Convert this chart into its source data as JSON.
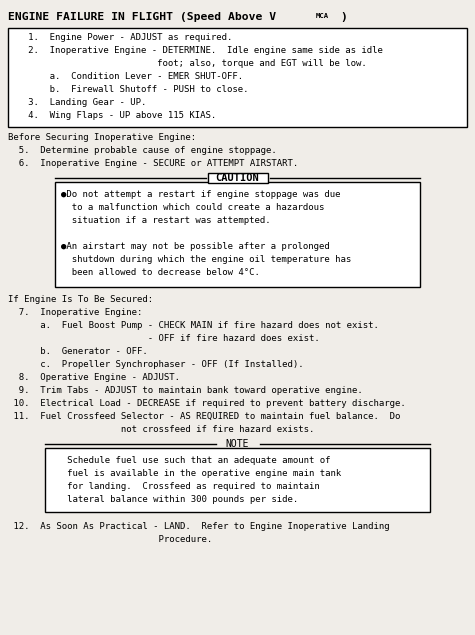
{
  "bg_color": "#f0ede8",
  "text_color": "#000000",
  "font_family": "monospace",
  "fig_width": 4.75,
  "fig_height": 6.35,
  "dpi": 100,
  "box1_lines": [
    "   1.  Engine Power - ADJUST as required.",
    "   2.  Inoperative Engine - DETERMINE.  Idle engine same side as idle",
    "                           foot; also, torque and EGT will be low.",
    "       a.  Condition Lever - EMER SHUT-OFF.",
    "       b.  Firewall Shutoff - PUSH to close.",
    "   3.  Landing Gear - UP.",
    "   4.  Wing Flaps - UP above 115 KIAS."
  ],
  "before_lines": [
    "Before Securing Inoperative Engine:",
    "  5.  Determine probable cause of engine stoppage.",
    "  6.  Inoperative Engine - SECURE or ATTEMPT AIRSTART."
  ],
  "caution_lines": [
    "●Do not attempt a restart if engine stoppage was due",
    "  to a malfunction which could create a hazardous",
    "  situation if a restart was attempted.",
    "",
    "●An airstart may not be possible after a prolonged",
    "  shutdown during which the engine oil temperature has",
    "  been allowed to decrease below 4°C."
  ],
  "if_engine_lines": [
    "If Engine Is To Be Secured:",
    "  7.  Inoperative Engine:",
    "      a.  Fuel Boost Pump - CHECK MAIN if fire hazard does not exist.",
    "                          - OFF if fire hazard does exist.",
    "      b.  Generator - OFF.",
    "      c.  Propeller Synchrophaser - OFF (If Installed).",
    "  8.  Operative Engine - ADJUST.",
    "  9.  Trim Tabs - ADJUST to maintain bank toward operative engine.",
    " 10.  Electrical Load - DECREASE if required to prevent battery discharge.",
    " 11.  Fuel Crossfeed Selector - AS REQUIRED to maintain fuel balance.  Do",
    "                     not crossfeed if fire hazard exists."
  ],
  "note_lines": [
    "   Schedule fuel use such that an adequate amount of",
    "   fuel is available in the operative engine main tank",
    "   for landing.  Crossfeed as required to maintain",
    "   lateral balance within 300 pounds per side."
  ],
  "last_lines": [
    " 12.  As Soon As Practical - LAND.  Refer to Engine Inoperative Landing",
    "                            Procedure."
  ]
}
